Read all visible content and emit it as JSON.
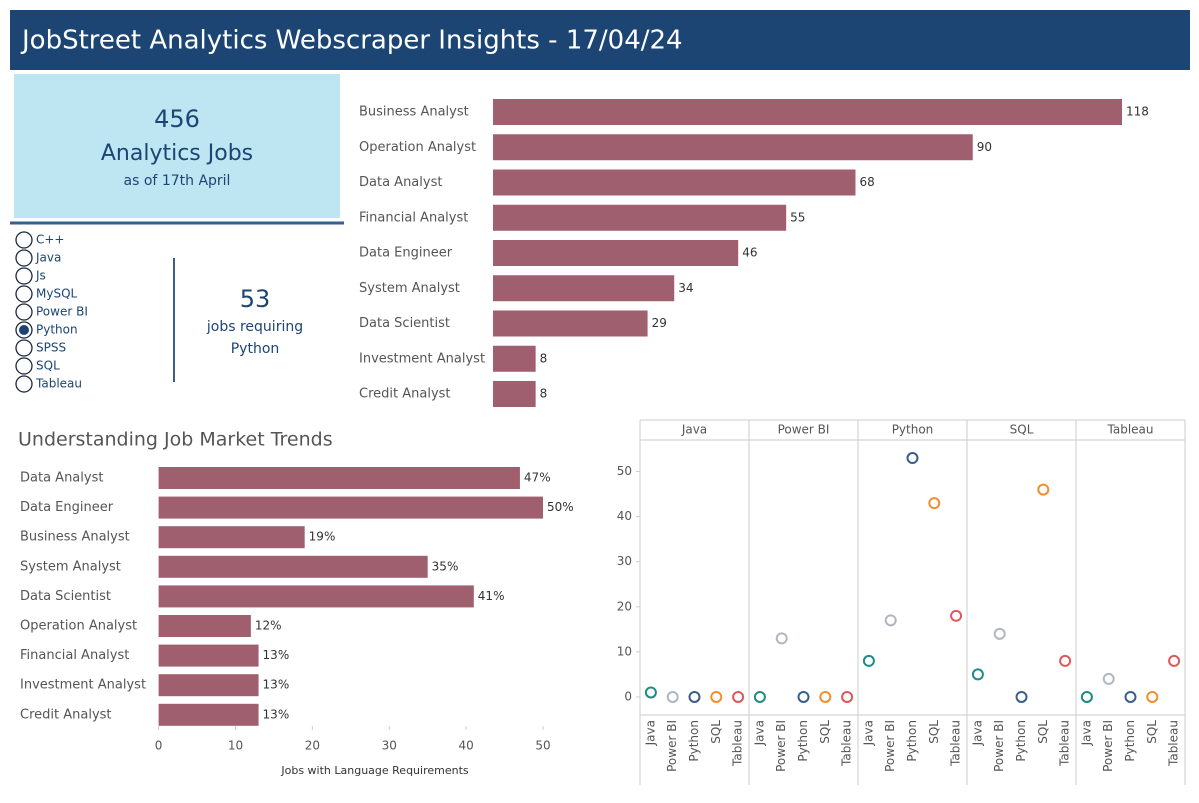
{
  "header": {
    "title": "JobStreet Analytics Webscraper Insights - 17/04/24"
  },
  "kpi": {
    "value": 456,
    "label": "Analytics Jobs",
    "sublabel": "as of 17th April"
  },
  "filter": {
    "options": [
      "C++",
      "Java",
      "Js",
      "MySQL",
      "Power BI",
      "Python",
      "SPSS",
      "SQL",
      "Tableau"
    ],
    "selected": "Python"
  },
  "kpi2": {
    "value": 53,
    "label": "jobs requiring"
  },
  "chart_data": [
    {
      "type": "hbar",
      "color": "#a05f6e",
      "categories": [
        "Business Analyst",
        "Operation Analyst",
        "Data Analyst",
        "Financial Analyst",
        "Data Engineer",
        "System Analyst",
        "Data Scientist",
        "Investment Analyst",
        "Credit Analyst"
      ],
      "values": [
        118,
        90,
        68,
        55,
        46,
        34,
        29,
        8,
        8
      ]
    },
    {
      "type": "hbar",
      "title": "Understanding Job Market Trends",
      "xlabel": "Jobs with Language Requirements",
      "color": "#a05f6e",
      "categories": [
        "Data Analyst",
        "Data Engineer",
        "Business Analyst",
        "System Analyst",
        "Data Scientist",
        "Operation Analyst",
        "Financial Analyst",
        "Investment Analyst",
        "Credit Analyst"
      ],
      "values": [
        47,
        50,
        19,
        35,
        41,
        12,
        13,
        13,
        13
      ],
      "value_labels": [
        "47%",
        "50%",
        "19%",
        "35%",
        "41%",
        "12%",
        "13%",
        "13%",
        "13%"
      ],
      "xlim": [
        -0.6,
        50
      ],
      "xticks": [
        0,
        10,
        20,
        30,
        40,
        50
      ]
    },
    {
      "type": "scatter-panels",
      "categories": [
        "Java",
        "Power BI",
        "Python",
        "SQL",
        "Tableau"
      ],
      "colors": [
        "#1f8a87",
        "#b0b5c0",
        "#3a5e8c",
        "#f28e2b",
        "#e15759"
      ],
      "panels": [
        {
          "name": "Java",
          "values": [
            1,
            0,
            0,
            0,
            0
          ]
        },
        {
          "name": "Power BI",
          "values": [
            0,
            13,
            0,
            0,
            0
          ]
        },
        {
          "name": "Python",
          "values": [
            8,
            17,
            53,
            43,
            18
          ]
        },
        {
          "name": "SQL",
          "values": [
            5,
            14,
            0,
            46,
            8
          ]
        },
        {
          "name": "Tableau",
          "values": [
            0,
            4,
            0,
            0,
            8
          ]
        }
      ],
      "ylim": [
        -4,
        57
      ],
      "yticks": [
        0,
        10,
        20,
        30,
        40,
        50
      ]
    }
  ]
}
